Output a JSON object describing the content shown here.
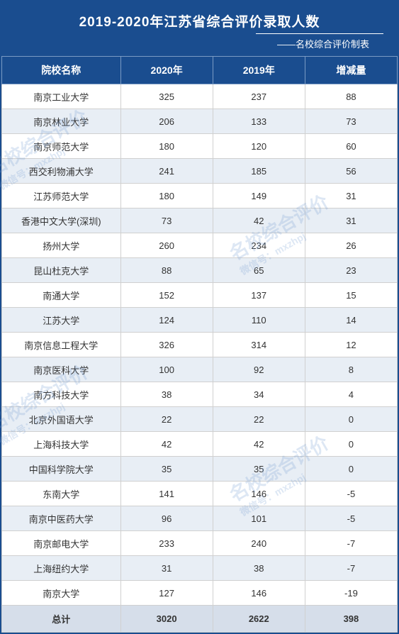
{
  "header": {
    "title": "2019-2020年江苏省综合评价录取人数",
    "subtitle": "——名校综合评价制表"
  },
  "table": {
    "columns": [
      "院校名称",
      "2020年",
      "2019年",
      "增减量"
    ],
    "rows": [
      [
        "南京工业大学",
        "325",
        "237",
        "88"
      ],
      [
        "南京林业大学",
        "206",
        "133",
        "73"
      ],
      [
        "南京师范大学",
        "180",
        "120",
        "60"
      ],
      [
        "西交利物浦大学",
        "241",
        "185",
        "56"
      ],
      [
        "江苏师范大学",
        "180",
        "149",
        "31"
      ],
      [
        "香港中文大学(深圳)",
        "73",
        "42",
        "31"
      ],
      [
        "扬州大学",
        "260",
        "234",
        "26"
      ],
      [
        "昆山杜克大学",
        "88",
        "65",
        "23"
      ],
      [
        "南通大学",
        "152",
        "137",
        "15"
      ],
      [
        "江苏大学",
        "124",
        "110",
        "14"
      ],
      [
        "南京信息工程大学",
        "326",
        "314",
        "12"
      ],
      [
        "南京医科大学",
        "100",
        "92",
        "8"
      ],
      [
        "南方科技大学",
        "38",
        "34",
        "4"
      ],
      [
        "北京外国语大学",
        "22",
        "22",
        "0"
      ],
      [
        "上海科技大学",
        "42",
        "42",
        "0"
      ],
      [
        "中国科学院大学",
        "35",
        "35",
        "0"
      ],
      [
        "东南大学",
        "141",
        "146",
        "-5"
      ],
      [
        "南京中医药大学",
        "96",
        "101",
        "-5"
      ],
      [
        "南京邮电大学",
        "233",
        "240",
        "-7"
      ],
      [
        "上海纽约大学",
        "31",
        "38",
        "-7"
      ],
      [
        "南京大学",
        "127",
        "146",
        "-19"
      ]
    ],
    "total": [
      "总计",
      "3020",
      "2622",
      "398"
    ]
  },
  "watermark": {
    "text1": "名校综合评价",
    "text2": "微信号：mxzhpj"
  },
  "colors": {
    "headerBg": "#1a4d8f",
    "headerText": "#ffffff",
    "oddRow": "#ffffff",
    "evenRow": "#e8eef5",
    "totalRow": "#d6deea",
    "border": "#d0d0d0"
  }
}
